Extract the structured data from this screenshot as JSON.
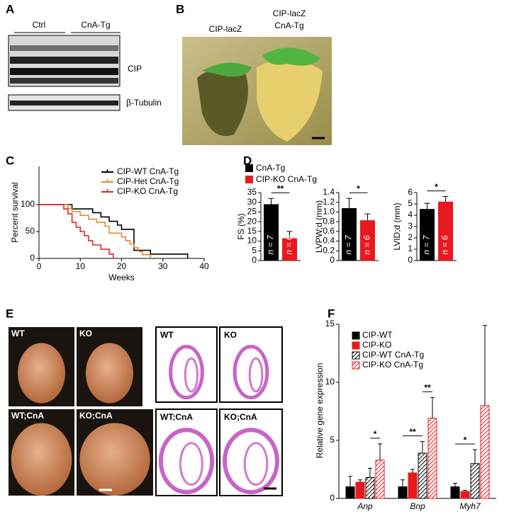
{
  "panel_labels": [
    "A",
    "B",
    "C",
    "D",
    "E",
    "F"
  ],
  "blot": {
    "groups": [
      "Ctrl",
      "CnA-Tg"
    ],
    "bands": [
      "CIP",
      "β-Tubulin"
    ]
  },
  "hearts_b": {
    "left": "CIP-lacZ",
    "right": [
      "CIP-lacZ",
      "CnA-Tg"
    ]
  },
  "hearts_e": {
    "photos": [
      "WT",
      "KO",
      "WT;CnA",
      "KO;CnA"
    ],
    "sections": [
      "WT",
      "KO",
      "WT;CnA",
      "KO;CnA"
    ]
  },
  "chart_data": [
    {
      "type": "step",
      "xlabel": "Weeks",
      "ylabel": "Percent survival",
      "xlim": [
        0,
        40
      ],
      "xticks": [
        0,
        10,
        20,
        30,
        40
      ],
      "ylim": [
        0,
        100
      ],
      "yticks": [
        0,
        50,
        100
      ],
      "series": [
        {
          "name": "CIP-WT CnA-Tg",
          "color": "#000000",
          "x": [
            0,
            8,
            13,
            15,
            17,
            19,
            20,
            23,
            27,
            36
          ],
          "values": [
            100,
            92,
            85,
            77,
            69,
            62,
            54,
            15,
            8,
            0
          ]
        },
        {
          "name": "CIP-Het CnA-Tg",
          "color": "#e8892b",
          "x": [
            0,
            7,
            8,
            10,
            12,
            14,
            16,
            17,
            20,
            21,
            22,
            23,
            24,
            25,
            27
          ],
          "values": [
            100,
            93,
            87,
            80,
            73,
            67,
            60,
            47,
            40,
            33,
            27,
            20,
            13,
            7,
            0
          ]
        },
        {
          "name": "CIP-KO CnA-Tg",
          "color": "#e0262a",
          "x": [
            0,
            6,
            7,
            8,
            9,
            10,
            11,
            12,
            13,
            15,
            17,
            18
          ],
          "values": [
            100,
            92,
            83,
            67,
            58,
            50,
            42,
            33,
            25,
            17,
            8,
            0
          ]
        }
      ]
    },
    {
      "type": "bar",
      "legend": [
        "CnA-Tg",
        "CIP-KO CnA-Tg"
      ],
      "colors": [
        "#000000",
        "#e8191e"
      ],
      "ylabel": "FS (%)",
      "ylim": [
        0,
        35
      ],
      "yticks": [
        0,
        5,
        10,
        15,
        20,
        25,
        30,
        35
      ],
      "values": [
        29,
        11.5
      ],
      "errors": [
        3,
        3.5
      ],
      "n_labels": [
        "n = 7",
        "n = 6"
      ],
      "significance": "**"
    },
    {
      "type": "bar",
      "colors": [
        "#000000",
        "#e8191e"
      ],
      "ylabel": "LVPW;d (mm)",
      "ylim": [
        0,
        1.4
      ],
      "yticks": [
        0,
        0.2,
        0.4,
        0.6,
        0.8,
        {
          "value": 1,
          "label": "1.0"
        },
        1.2,
        1.4
      ],
      "values": [
        1.08,
        0.83
      ],
      "errors": [
        0.2,
        0.13
      ],
      "n_labels": [
        "n = 7",
        "n = 6"
      ],
      "significance": "*"
    },
    {
      "type": "bar",
      "colors": [
        "#000000",
        "#e8191e"
      ],
      "ylabel": "LVID;d (mm)",
      "ylim": [
        0,
        6
      ],
      "yticks": [
        0,
        1,
        2,
        3,
        4,
        5,
        6
      ],
      "values": [
        4.55,
        5.2
      ],
      "errors": [
        0.5,
        0.45
      ],
      "n_labels": [
        "n = 7",
        "n = 6"
      ],
      "significance": "*"
    },
    {
      "type": "grouped-bar",
      "ylabel": "Relative gene expression",
      "categories": [
        "Anp",
        "Bnp",
        "Myh7"
      ],
      "ylim": [
        0,
        15
      ],
      "yticks": [
        0,
        5,
        10,
        15
      ],
      "series": [
        {
          "name": "CIP-WT",
          "color": "#000000",
          "values": [
            1.0,
            1.0,
            1.0
          ],
          "errors": [
            0.9,
            0.6,
            0.3
          ]
        },
        {
          "name": "CIP-KO",
          "color": "#e8191e",
          "values": [
            1.4,
            2.2,
            0.6
          ],
          "errors": [
            0.2,
            0.3,
            0.1
          ]
        },
        {
          "name": "CIP-WT CnA-Tg",
          "color": "#000000",
          "pattern": "hatch",
          "values": [
            1.8,
            3.9,
            3.0
          ],
          "errors": [
            0.8,
            1.0,
            1.2
          ]
        },
        {
          "name": "CIP-KO CnA-Tg",
          "color": "#e8191e",
          "pattern": "hatch",
          "values": [
            3.3,
            6.9,
            8.0
          ],
          "errors": [
            1.4,
            1.8,
            6.9
          ]
        }
      ],
      "annotations": [
        "*",
        "**",
        "**",
        "*"
      ]
    }
  ]
}
